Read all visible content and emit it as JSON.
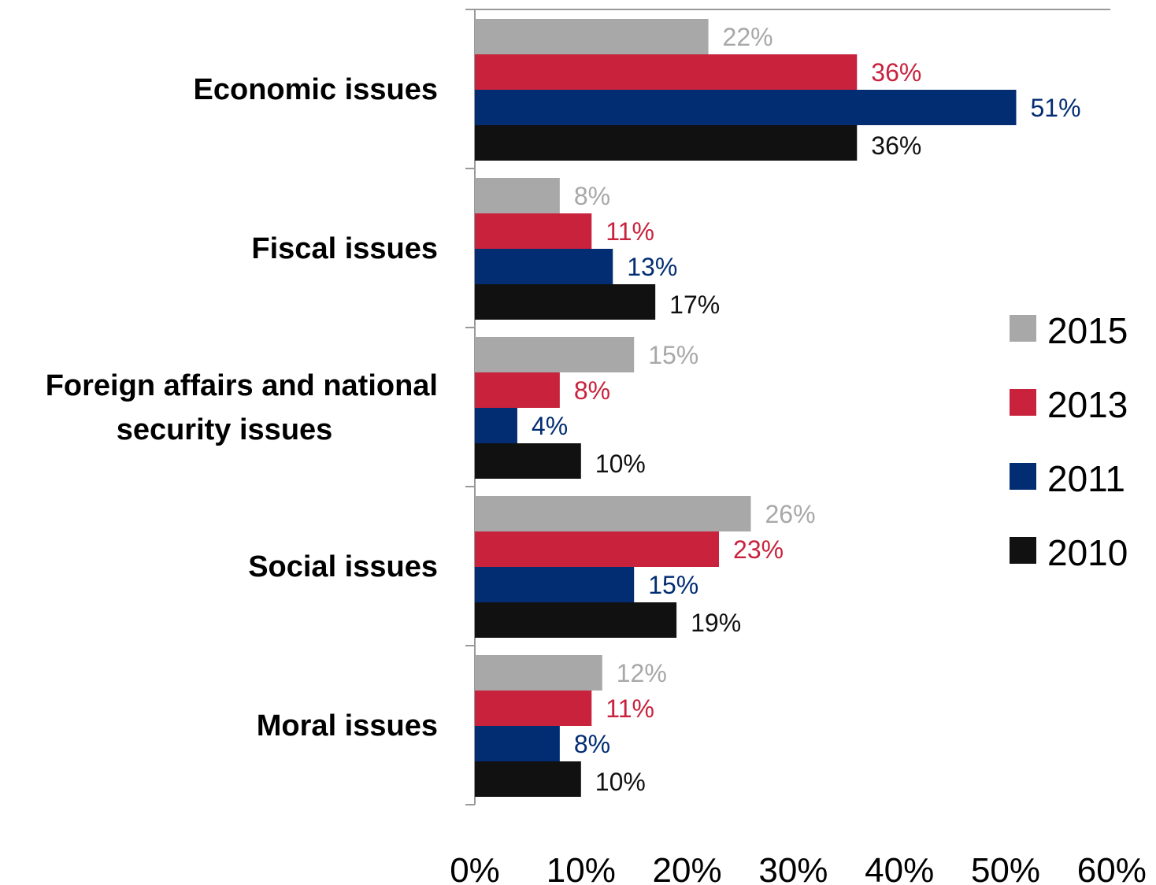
{
  "chart_data": {
    "type": "bar",
    "orientation": "horizontal",
    "categories": [
      [
        "Economic issues"
      ],
      [
        "Fiscal issues"
      ],
      [
        "Foreign affairs and national",
        "security issues"
      ],
      [
        "Social issues"
      ],
      [
        "Moral issues"
      ]
    ],
    "series": [
      {
        "name": "2015",
        "color": "#a8a8a8",
        "values": [
          22,
          8,
          15,
          26,
          12
        ]
      },
      {
        "name": "2013",
        "color": "#c8223d",
        "values": [
          36,
          11,
          8,
          23,
          11
        ]
      },
      {
        "name": "2011",
        "color": "#022d73",
        "values": [
          51,
          13,
          4,
          15,
          8
        ]
      },
      {
        "name": "2010",
        "color": "#111111",
        "values": [
          36,
          17,
          10,
          19,
          10
        ]
      }
    ],
    "xlim": [
      0,
      60
    ],
    "xticks": [
      0,
      10,
      20,
      30,
      40,
      50,
      60
    ],
    "xtick_labels": [
      "0%",
      "10%",
      "20%",
      "30%",
      "40%",
      "50%",
      "60%"
    ],
    "value_suffix": "%",
    "grid": false,
    "legend_position": "right"
  }
}
